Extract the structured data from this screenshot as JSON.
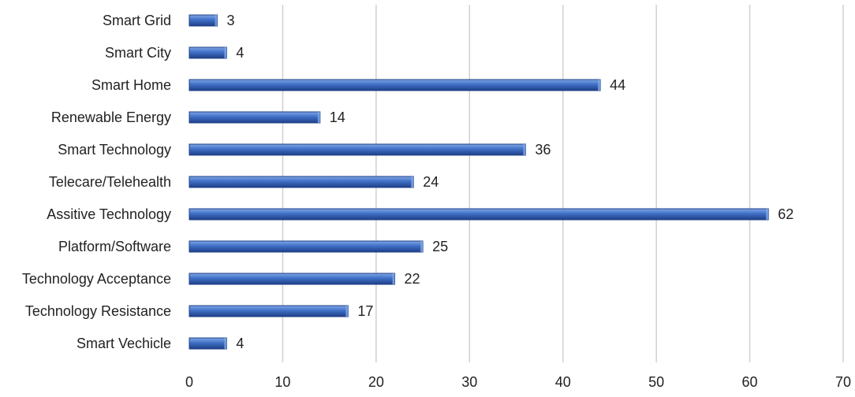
{
  "chart_data": {
    "type": "bar",
    "orientation": "horizontal",
    "categories": [
      "Smart Grid",
      "Smart City",
      "Smart Home",
      "Renewable Energy",
      "Smart Technology",
      "Telecare/Telehealth",
      "Assitive Technology",
      "Platform/Software",
      "Technology Acceptance",
      "Technology Resistance",
      "Smart Vechicle"
    ],
    "values": [
      3,
      4,
      44,
      14,
      36,
      24,
      62,
      25,
      22,
      17,
      4
    ],
    "xlim": [
      0,
      70
    ],
    "xticks": [
      0,
      10,
      20,
      30,
      40,
      50,
      60,
      70
    ],
    "grid": true,
    "data_labels": true,
    "bar_color": "#3f6fc6",
    "bar_color_light": "#7fa6e6",
    "bar_color_dark": "#1f3f86"
  }
}
